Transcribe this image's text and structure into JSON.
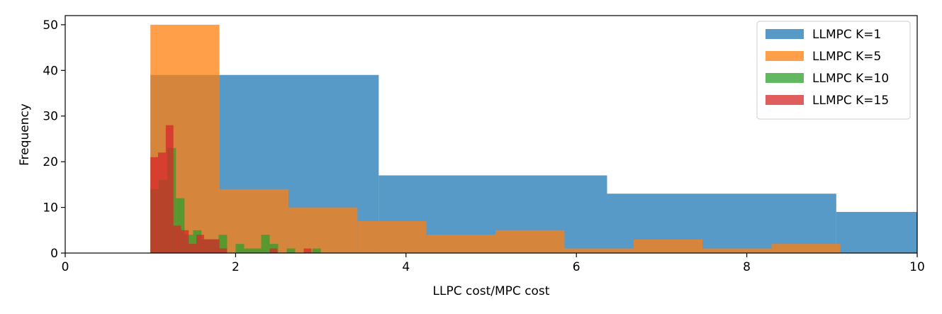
{
  "chart_data": {
    "type": "bar",
    "xlabel": "LLPC cost/MPC cost",
    "ylabel": "Frequency",
    "xlim": [
      0,
      10
    ],
    "ylim": [
      0,
      52
    ],
    "x_ticks": [
      0,
      2,
      4,
      6,
      8,
      10
    ],
    "y_ticks": [
      0,
      10,
      20,
      30,
      40,
      50
    ],
    "grid": false,
    "legend_position": "top-right",
    "series": [
      {
        "name": "LLMPC K=1",
        "color": "#1f77b4",
        "bins": [
          {
            "x0": 1.0,
            "x1": 1.81,
            "count": 39
          },
          {
            "x0": 1.81,
            "x1": 3.68,
            "count": 39
          },
          {
            "x0": 3.68,
            "x1": 6.36,
            "count": 17
          },
          {
            "x0": 6.36,
            "x1": 9.05,
            "count": 13
          },
          {
            "x0": 9.05,
            "x1": 10.0,
            "count": 9
          }
        ]
      },
      {
        "name": "LLMPC K=5",
        "color": "#ff7f0e",
        "bins": [
          {
            "x0": 1.0,
            "x1": 1.81,
            "count": 50
          },
          {
            "x0": 1.81,
            "x1": 2.62,
            "count": 14
          },
          {
            "x0": 2.62,
            "x1": 3.43,
            "count": 10
          },
          {
            "x0": 3.43,
            "x1": 4.24,
            "count": 7
          },
          {
            "x0": 4.24,
            "x1": 5.05,
            "count": 4
          },
          {
            "x0": 5.05,
            "x1": 5.86,
            "count": 5
          },
          {
            "x0": 5.86,
            "x1": 6.67,
            "count": 1
          },
          {
            "x0": 6.67,
            "x1": 7.48,
            "count": 3
          },
          {
            "x0": 7.48,
            "x1": 8.29,
            "count": 1
          },
          {
            "x0": 8.29,
            "x1": 9.1,
            "count": 2
          }
        ]
      },
      {
        "name": "LLMPC K=10",
        "color": "#2ca02c",
        "bins": [
          {
            "x0": 1.0,
            "x1": 1.1,
            "count": 14
          },
          {
            "x0": 1.1,
            "x1": 1.2,
            "count": 16
          },
          {
            "x0": 1.2,
            "x1": 1.3,
            "count": 23
          },
          {
            "x0": 1.3,
            "x1": 1.4,
            "count": 12
          },
          {
            "x0": 1.4,
            "x1": 1.5,
            "count": 4
          },
          {
            "x0": 1.5,
            "x1": 1.6,
            "count": 5
          },
          {
            "x0": 1.6,
            "x1": 1.7,
            "count": 3
          },
          {
            "x0": 1.7,
            "x1": 1.8,
            "count": 3
          },
          {
            "x0": 1.8,
            "x1": 1.9,
            "count": 4
          },
          {
            "x0": 1.9,
            "x1": 2.0,
            "count": 0
          },
          {
            "x0": 2.0,
            "x1": 2.1,
            "count": 2
          },
          {
            "x0": 2.1,
            "x1": 2.2,
            "count": 1
          },
          {
            "x0": 2.2,
            "x1": 2.3,
            "count": 1
          },
          {
            "x0": 2.3,
            "x1": 2.4,
            "count": 4
          },
          {
            "x0": 2.4,
            "x1": 2.5,
            "count": 2
          },
          {
            "x0": 2.5,
            "x1": 2.6,
            "count": 0
          },
          {
            "x0": 2.6,
            "x1": 2.7,
            "count": 1
          },
          {
            "x0": 2.7,
            "x1": 2.8,
            "count": 0
          },
          {
            "x0": 2.8,
            "x1": 2.9,
            "count": 0
          },
          {
            "x0": 2.9,
            "x1": 3.0,
            "count": 1
          }
        ]
      },
      {
        "name": "LLMPC K=15",
        "color": "#d62728",
        "bins": [
          {
            "x0": 1.0,
            "x1": 1.09,
            "count": 21
          },
          {
            "x0": 1.09,
            "x1": 1.18,
            "count": 22
          },
          {
            "x0": 1.18,
            "x1": 1.27,
            "count": 28
          },
          {
            "x0": 1.27,
            "x1": 1.36,
            "count": 6
          },
          {
            "x0": 1.36,
            "x1": 1.45,
            "count": 5
          },
          {
            "x0": 1.45,
            "x1": 1.54,
            "count": 2
          },
          {
            "x0": 1.54,
            "x1": 1.63,
            "count": 4
          },
          {
            "x0": 1.63,
            "x1": 1.72,
            "count": 3
          },
          {
            "x0": 1.72,
            "x1": 1.81,
            "count": 3
          },
          {
            "x0": 1.81,
            "x1": 1.9,
            "count": 1
          },
          {
            "x0": 2.4,
            "x1": 2.49,
            "count": 1
          },
          {
            "x0": 2.8,
            "x1": 2.89,
            "count": 1
          }
        ]
      }
    ]
  }
}
